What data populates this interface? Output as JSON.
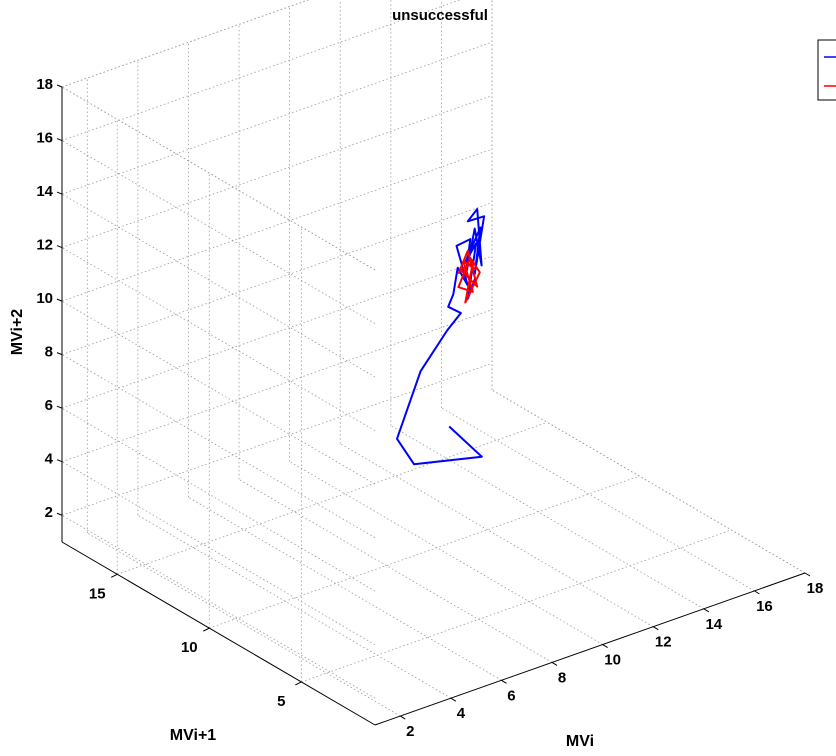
{
  "chart_data": {
    "type": "line",
    "title": "unsuccessful",
    "xlabel": "MVi",
    "ylabel": "MVi+1",
    "zlabel": "MVi+2",
    "xlim": [
      1,
      18
    ],
    "ylim": [
      1,
      18
    ],
    "zlim": [
      1,
      18
    ],
    "xticks": [
      "2",
      "4",
      "6",
      "8",
      "10",
      "12",
      "14",
      "16",
      "18"
    ],
    "yticks": [
      "5",
      "10",
      "15"
    ],
    "zticks": [
      "2",
      "4",
      "6",
      "8",
      "10",
      "12",
      "14",
      "16",
      "18"
    ],
    "grid": true,
    "legend_position": "top-right",
    "series": [
      {
        "color": "#0000ff",
        "points": [
          [
            8.3,
            7.0,
            7.3
          ],
          [
            9.3,
            6.6,
            6.0
          ],
          [
            7.2,
            7.4,
            6.1
          ],
          [
            7.4,
            8.6,
            6.5
          ],
          [
            7.9,
            8.0,
            9.1
          ],
          [
            8.8,
            7.8,
            10.4
          ],
          [
            9.2,
            7.6,
            11.0
          ],
          [
            8.7,
            7.6,
            11.4
          ],
          [
            8.9,
            7.6,
            11.8
          ],
          [
            9.0,
            7.5,
            12.8
          ],
          [
            9.4,
            7.5,
            12.0
          ],
          [
            9.1,
            7.7,
            13.5
          ],
          [
            9.5,
            7.5,
            13.7
          ],
          [
            9.3,
            7.5,
            12.3
          ],
          [
            9.6,
            7.4,
            14.1
          ],
          [
            9.8,
            7.3,
            12.7
          ],
          [
            9.7,
            7.4,
            14.8
          ],
          [
            9.4,
            7.5,
            14.4
          ],
          [
            9.9,
            7.3,
            14.5
          ],
          [
            9.6,
            7.4,
            12.4
          ],
          [
            9.9,
            7.5,
            14.0
          ],
          [
            9.3,
            7.5,
            12.9
          ],
          [
            9.8,
            7.6,
            13.4
          ],
          [
            9.4,
            7.5,
            11.5
          ],
          [
            9.7,
            7.5,
            12.2
          ]
        ]
      },
      {
        "color": "#ff0000",
        "points": [
          [
            9.1,
            7.6,
            12.5
          ],
          [
            9.4,
            7.5,
            13.3
          ],
          [
            9.7,
            7.4,
            11.9
          ],
          [
            9.2,
            7.6,
            12.6
          ],
          [
            9.6,
            7.5,
            12.8
          ],
          [
            9.3,
            7.5,
            11.4
          ],
          [
            9.8,
            7.4,
            12.4
          ],
          [
            9.5,
            7.5,
            13.0
          ],
          [
            9.1,
            7.6,
            12.0
          ],
          [
            9.6,
            7.5,
            11.7
          ],
          [
            9.3,
            7.6,
            12.9
          ],
          [
            9.7,
            7.5,
            12.5
          ]
        ]
      }
    ]
  }
}
